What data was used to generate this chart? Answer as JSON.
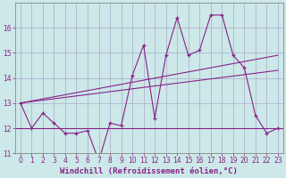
{
  "xlabel": "Windchill (Refroidissement éolien,°C)",
  "bg_color": "#cce8e8",
  "grid_color": "#aaaacc",
  "line_color": "#882288",
  "x": [
    0,
    1,
    2,
    3,
    4,
    5,
    6,
    7,
    8,
    9,
    10,
    11,
    12,
    13,
    14,
    15,
    16,
    17,
    18,
    19,
    20,
    21,
    22,
    23
  ],
  "y_main": [
    13,
    12,
    12.6,
    12.2,
    11.8,
    11.8,
    11.9,
    10.7,
    12.2,
    12.1,
    14.1,
    15.3,
    12.4,
    14.9,
    16.4,
    14.9,
    15.1,
    16.5,
    16.5,
    14.9,
    14.4,
    12.5,
    11.8,
    12
  ],
  "y_flat": 12.0,
  "trend1_x": [
    0,
    23
  ],
  "trend1_y": [
    13.0,
    14.9
  ],
  "trend2_x": [
    0,
    23
  ],
  "trend2_y": [
    13.0,
    14.3
  ],
  "ylim": [
    11,
    17
  ],
  "yticks": [
    11,
    12,
    13,
    14,
    15,
    16
  ],
  "xticks": [
    0,
    1,
    2,
    3,
    4,
    5,
    6,
    7,
    8,
    9,
    10,
    11,
    12,
    13,
    14,
    15,
    16,
    17,
    18,
    19,
    20,
    21,
    22,
    23
  ],
  "tick_fontsize": 5.5,
  "label_fontsize": 6.5
}
